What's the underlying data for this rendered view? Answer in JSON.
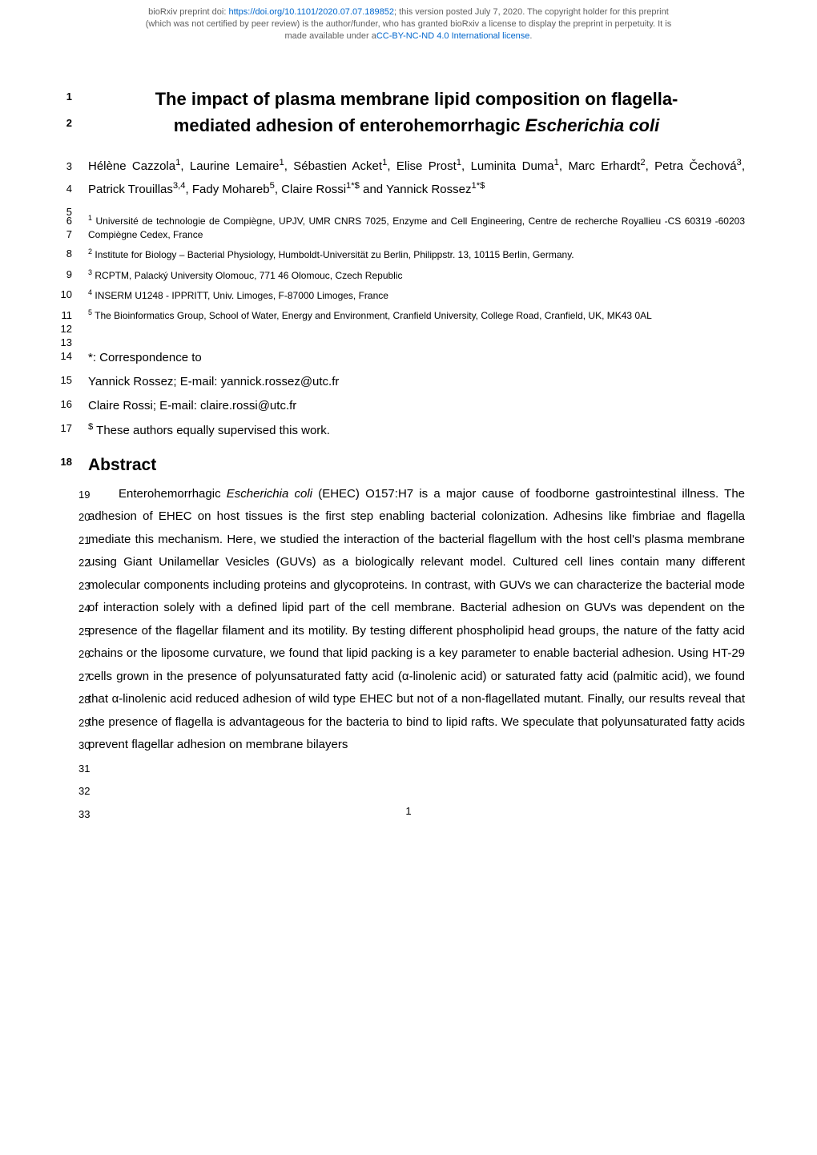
{
  "preprint_notice": {
    "line1_prefix": "bioRxiv preprint doi: ",
    "doi_url": "https://doi.org/10.1101/2020.07.07.189852",
    "line1_suffix": "; this version posted July 7, 2020. The copyright holder for this preprint",
    "line2": "(which was not certified by peer review) is the author/funder, who has granted bioRxiv a license to display the preprint in perpetuity. It is",
    "line3_prefix": "made available under a",
    "license_text": "CC-BY-NC-ND 4.0 International license",
    "line3_suffix": "."
  },
  "title": {
    "line1": "The impact of plasma membrane lipid composition on flagella-",
    "line2": "mediated adhesion of enterohemorrhagic Escherichia coli",
    "italic_part": "Escherichia coli"
  },
  "authors": {
    "text": "Hélène Cazzola¹, Laurine Lemaire¹, Sébastien Acket¹, Elise Prost¹, Luminita Duma¹, Marc Erhardt², Petra Čechová³, Patrick Trouillas³,⁴, Fady Mohareb⁵, Claire Rossi¹*$ and Yannick Rossez¹*$"
  },
  "affiliations": [
    {
      "num": "1",
      "text": "Université de technologie de Compiègne, UPJV, UMR CNRS 7025, Enzyme and Cell Engineering, Centre de recherche Royallieu -CS 60319 -60203 Compiègne Cedex, France"
    },
    {
      "num": "2",
      "text": "Institute for Biology – Bacterial Physiology, Humboldt-Universität zu Berlin, Philippstr. 13, 10115 Berlin, Germany."
    },
    {
      "num": "3",
      "text": "RCPTM, Palacký University Olomouc, 771 46 Olomouc, Czech Republic"
    },
    {
      "num": "4",
      "text": "INSERM U1248 - IPPRITT, Univ. Limoges, F-87000 Limoges, France"
    },
    {
      "num": "5",
      "text": "The Bioinformatics Group, School of Water, Energy and Environment, Cranfield University, College Road, Cranfield, UK, MK43 0AL"
    }
  ],
  "correspondence": {
    "label": "*: Correspondence to",
    "contact1": "Yannick Rossez; E-mail: yannick.rossez@utc.fr",
    "contact2": "Claire Rossi; E-mail: claire.rossi@utc.fr",
    "equal": "$ These authors equally supervised this work."
  },
  "abstract": {
    "heading": "Abstract",
    "body": "Enterohemorrhagic Escherichia coli (EHEC) O157:H7 is a major cause of foodborne gastrointestinal illness. The adhesion of EHEC on host tissues is the first step enabling bacterial colonization. Adhesins like fimbriae and flagella mediate this mechanism. Here, we studied the interaction of the bacterial flagellum with the host cell's plasma membrane using Giant Unilamellar Vesicles (GUVs) as a biologically relevant model. Cultured cell lines contain many different molecular components including proteins and glycoproteins. In contrast, with GUVs we can characterize the bacterial mode of interaction solely with a defined lipid part of the cell membrane. Bacterial adhesion on GUVs was dependent on the presence of the flagellar filament and its motility. By testing different phospholipid head groups, the nature of the fatty acid chains or the liposome curvature, we found that lipid packing is a key parameter to enable bacterial adhesion. Using HT-29 cells grown in the presence of polyunsaturated fatty acid (α-linolenic acid) or saturated fatty acid (palmitic acid), we found that α-linolenic acid reduced adhesion of wild type EHEC but not of a non-flagellated mutant. Finally, our results reveal that the presence of flagella is advantageous for the bacteria to bind to lipid rafts. We speculate that polyunsaturated fatty acids prevent flagellar adhesion on membrane bilayers"
  },
  "page_number": "1",
  "line_numbers": {
    "title1": "1",
    "title2": "2",
    "auth1": "3",
    "auth2": "4",
    "auth3": "5",
    "aff1a": "6",
    "aff1b": "7",
    "aff2": "8",
    "aff3": "9",
    "aff4": "10",
    "aff5a": "11",
    "aff5b": "12",
    "aff5c": "13",
    "corr1": "14",
    "corr2": "15",
    "corr3": "16",
    "corr4": "17",
    "abs_h": "18",
    "abs_start": 19,
    "abs_end": 33
  },
  "colors": {
    "text": "#000000",
    "header_gray": "#606060",
    "link": "#0066cc",
    "background": "#ffffff"
  },
  "typography": {
    "body_fontsize": 15,
    "title_fontsize": 22,
    "header_fontsize": 11,
    "affil_fontsize": 12,
    "abstract_heading_fontsize": 21,
    "line_height": 1.9
  }
}
